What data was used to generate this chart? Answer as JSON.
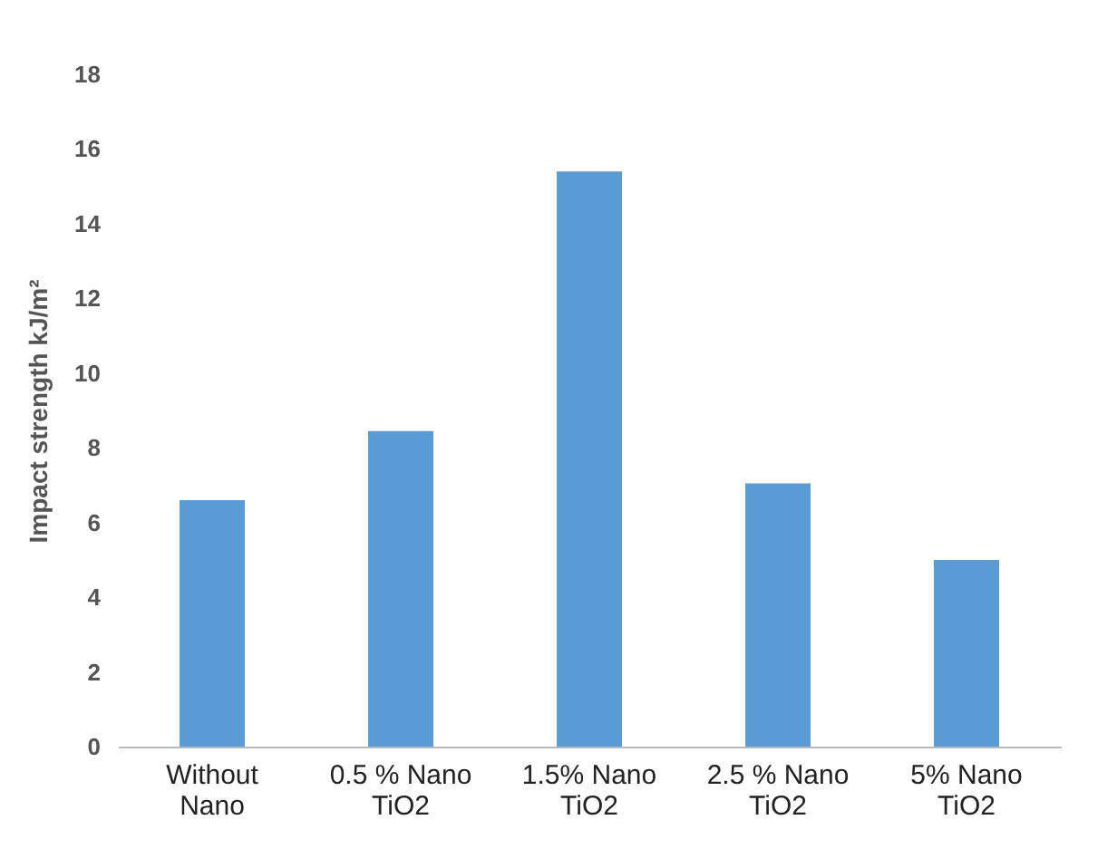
{
  "chart_data": {
    "type": "bar",
    "ylabel": "Impact strength  kJ/m²",
    "categories": [
      "Without Nano",
      "0.5 % Nano TiO2",
      "1.5% Nano TiO2",
      "2.5 % Nano TiO2",
      "5% Nano TiO2"
    ],
    "values": [
      6.6,
      8.45,
      15.4,
      7.05,
      5.0
    ],
    "color": "#5b9bd5",
    "ylim": [
      0,
      18
    ],
    "yticks": [
      0,
      2,
      4,
      6,
      8,
      10,
      12,
      14,
      16,
      18
    ],
    "grid": false
  }
}
